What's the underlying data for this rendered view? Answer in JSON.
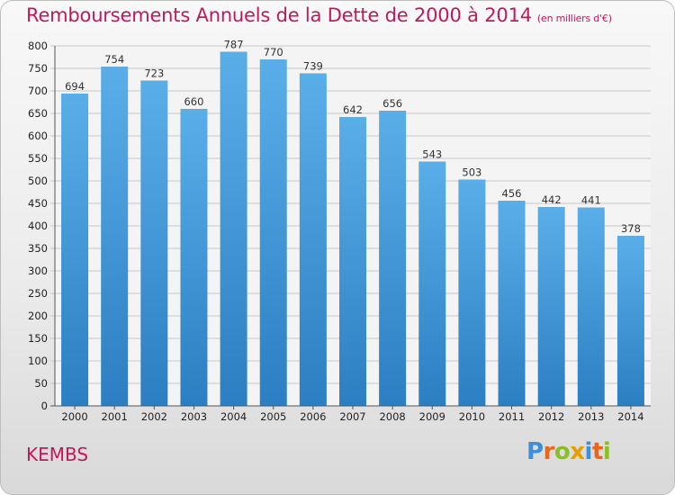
{
  "chart_data": {
    "type": "bar",
    "title": "Remboursements Annuels de la Dette de 2000 à 2014",
    "subtitle": "(en milliers d'€)",
    "xlabel": "",
    "ylabel": "",
    "categories": [
      "2000",
      "2001",
      "2002",
      "2003",
      "2004",
      "2005",
      "2006",
      "2007",
      "2008",
      "2009",
      "2010",
      "2011",
      "2012",
      "2013",
      "2014"
    ],
    "values": [
      694,
      754,
      723,
      660,
      787,
      770,
      739,
      642,
      656,
      543,
      503,
      456,
      442,
      441,
      378
    ],
    "value_labels": [
      "694",
      "754",
      "723",
      "660",
      "787",
      "770",
      "739",
      "642",
      "656",
      "543",
      "503",
      "456",
      "442",
      "441",
      "378"
    ],
    "ylim": [
      0,
      800
    ],
    "yticks": [
      0,
      50,
      100,
      150,
      200,
      250,
      300,
      350,
      400,
      450,
      500,
      550,
      600,
      650,
      700,
      750,
      800
    ],
    "grid": true,
    "legend": "none",
    "colors": {
      "bar_top": "#5aaee8",
      "bar_bottom": "#2b7fc2",
      "title": "#c2185b",
      "grid": "#c8c8c8"
    }
  },
  "footer": {
    "city": "KEMBS",
    "brand_letters": [
      {
        "ch": "P",
        "color": "#3c8fd9"
      },
      {
        "ch": "r",
        "color": "#e8671c"
      },
      {
        "ch": "o",
        "color": "#8cbf26"
      },
      {
        "ch": "x",
        "color": "#e3a000"
      },
      {
        "ch": "i",
        "color": "#3c8fd9"
      },
      {
        "ch": "t",
        "color": "#e8671c"
      },
      {
        "ch": "i",
        "color": "#8cbf26"
      }
    ]
  }
}
